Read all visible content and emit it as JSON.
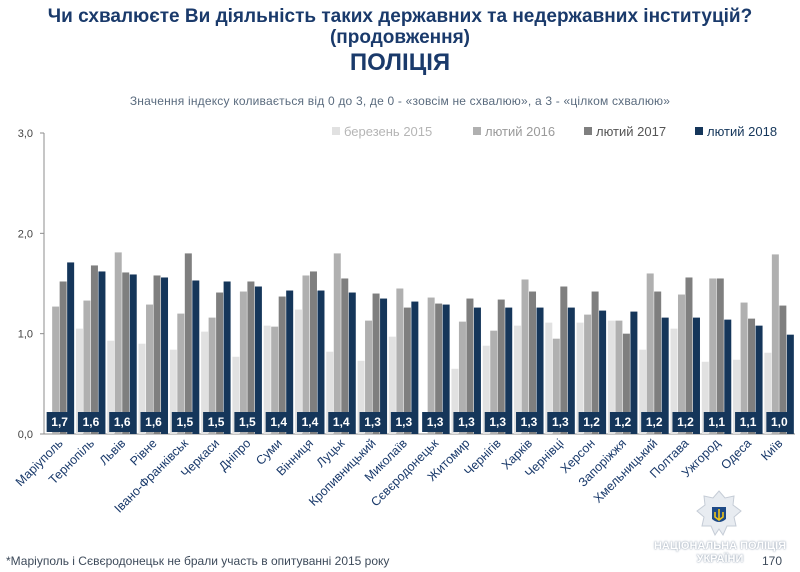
{
  "header": {
    "line1": "Чи схвалюєте Ви діяльність таких державних та недержавних інституцій?",
    "line2": "(продовження)",
    "line3": "ПОЛІЦІЯ",
    "subtitle": "Значення індексу коливається від 0 до 3, де 0 - «зовсім не схвалюю», а 3 - «цілком схвалюю»"
  },
  "footer": {
    "note": "*Маріуполь і Сєвєродонецьк не брали участь в опитуванні 2015 року",
    "page": "170",
    "logo_line1": "НАЦІОНАЛЬНА ПОЛІЦІЯ",
    "logo_line2": "УКРАЇНИ"
  },
  "colors": {
    "title": "#1a3a6b",
    "series": [
      "#e1e1e1",
      "#b0b0b0",
      "#7f7f7f",
      "#15365a"
    ]
  },
  "chart_data": {
    "type": "bar",
    "ylim": [
      0,
      3
    ],
    "yticks": [
      "0,0",
      "1,0",
      "2,0",
      "3,0"
    ],
    "legend_position": "top-right",
    "grid": false,
    "categories": [
      "Маріуполь",
      "Тернопіль",
      "Львів",
      "Рівне",
      "Івано-Франківськ",
      "Черкаси",
      "Дніпро",
      "Суми",
      "Вінниця",
      "Луцьк",
      "Кропивницький",
      "Миколаїв",
      "Сєвєродонецьк",
      "Житомир",
      "Чернігів",
      "Харків",
      "Чернівці",
      "Херсон",
      "Запоріжжя",
      "Хмельницький",
      "Полтава",
      "Ужгород",
      "Одеса",
      "Київ"
    ],
    "series": [
      {
        "name": "березень 2015",
        "values": [
          null,
          1.05,
          0.93,
          0.9,
          0.84,
          1.02,
          0.77,
          1.08,
          1.24,
          0.82,
          0.73,
          0.97,
          null,
          0.65,
          0.88,
          1.08,
          1.11,
          1.11,
          1.13,
          0.84,
          1.05,
          0.72,
          0.74,
          0.81
        ]
      },
      {
        "name": "лютий 2016",
        "values": [
          1.27,
          1.33,
          1.81,
          1.29,
          1.2,
          1.16,
          1.42,
          1.07,
          1.58,
          1.8,
          1.13,
          1.45,
          1.36,
          1.12,
          1.03,
          1.54,
          0.95,
          1.19,
          1.13,
          1.6,
          1.39,
          1.55,
          1.31,
          1.79
        ]
      },
      {
        "name": "лютий 2017",
        "values": [
          1.52,
          1.68,
          1.61,
          1.58,
          1.8,
          1.41,
          1.52,
          1.37,
          1.62,
          1.55,
          1.4,
          1.26,
          1.3,
          1.35,
          1.34,
          1.42,
          1.47,
          1.42,
          1.0,
          1.42,
          1.56,
          1.55,
          1.15,
          1.28
        ]
      },
      {
        "name": "лютий 2018",
        "values": [
          1.71,
          1.62,
          1.59,
          1.56,
          1.53,
          1.52,
          1.47,
          1.43,
          1.43,
          1.41,
          1.35,
          1.32,
          1.29,
          1.26,
          1.26,
          1.26,
          1.26,
          1.23,
          1.22,
          1.16,
          1.16,
          1.14,
          1.08,
          0.99
        ]
      }
    ],
    "value_labels": [
      "1,7",
      "1,6",
      "1,6",
      "1,6",
      "1,5",
      "1,5",
      "1,5",
      "1,4",
      "1,4",
      "1,4",
      "1,3",
      "1,3",
      "1,3",
      "1,3",
      "1,3",
      "1,3",
      "1,3",
      "1,2",
      "1,2",
      "1,2",
      "1,2",
      "1,1",
      "1,1",
      "1,0"
    ]
  }
}
